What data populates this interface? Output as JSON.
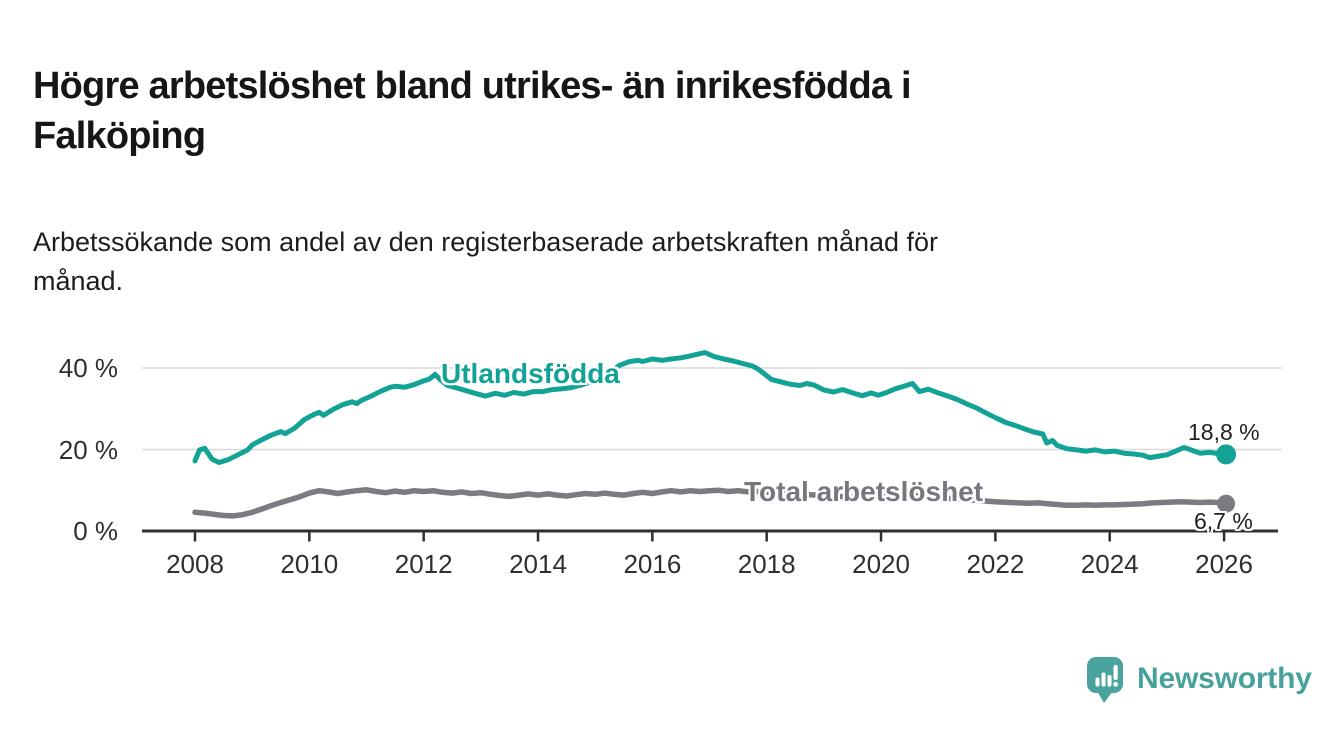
{
  "header": {
    "title_lines": [
      "Högre arbetslöshet bland utrikes- än inrikesfödda i",
      "Falköping"
    ],
    "subtitle_lines": [
      "Arbetssökande som andel av den registerbaserade arbetskraften månad för",
      "månad."
    ]
  },
  "chart_data": {
    "type": "line",
    "title": "Högre arbetslöshet bland utrikes- än inrikesfödda i Falköping",
    "subtitle": "Arbetssökande som andel av den registerbaserade arbetskraften månad för månad.",
    "unit": "%",
    "grid": "horizontal",
    "legend_position": "inline-labels",
    "x_axis": {
      "range": [
        2008,
        2027
      ],
      "ticks": [
        2008,
        2010,
        2012,
        2014,
        2016,
        2018,
        2020,
        2022,
        2024,
        2026
      ]
    },
    "y_axis": {
      "range": [
        0,
        44
      ],
      "gridlines": [
        20,
        40
      ],
      "ticks": [
        {
          "value": 0,
          "label": "0 %"
        },
        {
          "value": 20,
          "label": "20 %"
        },
        {
          "value": 40,
          "label": "40 %"
        }
      ]
    },
    "series": [
      {
        "name": "Utlandsfödda",
        "color": "#12a296",
        "end_label": "18,8 %",
        "end_value": 18.8,
        "points": [
          [
            2008.0,
            17.2
          ],
          [
            2008.08,
            19.9
          ],
          [
            2008.17,
            20.3
          ],
          [
            2008.3,
            17.6
          ],
          [
            2008.42,
            16.8
          ],
          [
            2008.58,
            17.5
          ],
          [
            2008.75,
            18.7
          ],
          [
            2008.92,
            19.9
          ],
          [
            2009.0,
            21.1
          ],
          [
            2009.17,
            22.4
          ],
          [
            2009.33,
            23.5
          ],
          [
            2009.5,
            24.4
          ],
          [
            2009.58,
            23.9
          ],
          [
            2009.75,
            25.3
          ],
          [
            2009.92,
            27.4
          ],
          [
            2010.08,
            28.6
          ],
          [
            2010.17,
            29.1
          ],
          [
            2010.25,
            28.4
          ],
          [
            2010.42,
            29.9
          ],
          [
            2010.58,
            31.0
          ],
          [
            2010.75,
            31.7
          ],
          [
            2010.83,
            31.3
          ],
          [
            2010.92,
            32.1
          ],
          [
            2011.08,
            33.1
          ],
          [
            2011.25,
            34.3
          ],
          [
            2011.42,
            35.3
          ],
          [
            2011.5,
            35.5
          ],
          [
            2011.67,
            35.3
          ],
          [
            2011.83,
            35.9
          ],
          [
            2011.95,
            36.6
          ],
          [
            2012.1,
            37.3
          ],
          [
            2012.2,
            38.4
          ],
          [
            2012.3,
            37.0
          ],
          [
            2012.42,
            35.7
          ],
          [
            2012.58,
            35.1
          ],
          [
            2012.75,
            34.4
          ],
          [
            2012.92,
            33.7
          ],
          [
            2013.08,
            33.1
          ],
          [
            2013.25,
            33.8
          ],
          [
            2013.42,
            33.3
          ],
          [
            2013.58,
            34.0
          ],
          [
            2013.75,
            33.6
          ],
          [
            2013.92,
            34.2
          ],
          [
            2014.08,
            34.2
          ],
          [
            2014.25,
            34.7
          ],
          [
            2014.42,
            34.9
          ],
          [
            2014.58,
            35.2
          ],
          [
            2014.75,
            35.8
          ],
          [
            2014.92,
            36.6
          ],
          [
            2015.08,
            37.6
          ],
          [
            2015.25,
            38.9
          ],
          [
            2015.42,
            40.6
          ],
          [
            2015.58,
            41.5
          ],
          [
            2015.75,
            41.9
          ],
          [
            2015.83,
            41.6
          ],
          [
            2016.0,
            42.2
          ],
          [
            2016.17,
            41.9
          ],
          [
            2016.33,
            42.2
          ],
          [
            2016.5,
            42.5
          ],
          [
            2016.67,
            43.0
          ],
          [
            2016.83,
            43.5
          ],
          [
            2016.92,
            43.8
          ],
          [
            2017.08,
            42.8
          ],
          [
            2017.25,
            42.2
          ],
          [
            2017.42,
            41.7
          ],
          [
            2017.58,
            41.1
          ],
          [
            2017.75,
            40.5
          ],
          [
            2017.83,
            39.9
          ],
          [
            2017.95,
            38.7
          ],
          [
            2018.08,
            37.2
          ],
          [
            2018.25,
            36.6
          ],
          [
            2018.42,
            36.0
          ],
          [
            2018.58,
            35.7
          ],
          [
            2018.7,
            36.2
          ],
          [
            2018.83,
            35.8
          ],
          [
            2019.0,
            34.6
          ],
          [
            2019.17,
            34.1
          ],
          [
            2019.33,
            34.7
          ],
          [
            2019.5,
            33.9
          ],
          [
            2019.67,
            33.2
          ],
          [
            2019.83,
            33.9
          ],
          [
            2019.95,
            33.3
          ],
          [
            2020.08,
            33.9
          ],
          [
            2020.25,
            34.9
          ],
          [
            2020.42,
            35.6
          ],
          [
            2020.55,
            36.2
          ],
          [
            2020.67,
            34.2
          ],
          [
            2020.83,
            34.8
          ],
          [
            2021.0,
            33.9
          ],
          [
            2021.17,
            33.1
          ],
          [
            2021.33,
            32.3
          ],
          [
            2021.5,
            31.2
          ],
          [
            2021.67,
            30.2
          ],
          [
            2021.83,
            29.0
          ],
          [
            2022.0,
            27.8
          ],
          [
            2022.17,
            26.7
          ],
          [
            2022.33,
            26.0
          ],
          [
            2022.5,
            25.1
          ],
          [
            2022.67,
            24.3
          ],
          [
            2022.83,
            23.8
          ],
          [
            2022.9,
            21.6
          ],
          [
            2023.0,
            22.2
          ],
          [
            2023.08,
            21.0
          ],
          [
            2023.25,
            20.2
          ],
          [
            2023.42,
            19.9
          ],
          [
            2023.58,
            19.6
          ],
          [
            2023.75,
            19.9
          ],
          [
            2023.92,
            19.4
          ],
          [
            2024.08,
            19.6
          ],
          [
            2024.25,
            19.1
          ],
          [
            2024.42,
            18.9
          ],
          [
            2024.58,
            18.6
          ],
          [
            2024.7,
            18.0
          ],
          [
            2024.83,
            18.3
          ],
          [
            2025.0,
            18.7
          ],
          [
            2025.17,
            19.7
          ],
          [
            2025.3,
            20.5
          ],
          [
            2025.42,
            19.9
          ],
          [
            2025.58,
            19.1
          ],
          [
            2025.75,
            19.3
          ],
          [
            2025.9,
            19.0
          ],
          [
            2026.0,
            18.8
          ]
        ]
      },
      {
        "name": "Total arbetslöshet",
        "color": "#7b7b82",
        "end_label": "6,7 %",
        "end_value": 6.7,
        "points": [
          [
            2008.0,
            4.6
          ],
          [
            2008.17,
            4.4
          ],
          [
            2008.33,
            4.1
          ],
          [
            2008.5,
            3.8
          ],
          [
            2008.67,
            3.7
          ],
          [
            2008.83,
            4.0
          ],
          [
            2009.0,
            4.6
          ],
          [
            2009.17,
            5.4
          ],
          [
            2009.33,
            6.2
          ],
          [
            2009.5,
            7.0
          ],
          [
            2009.67,
            7.7
          ],
          [
            2009.83,
            8.4
          ],
          [
            2010.0,
            9.3
          ],
          [
            2010.17,
            9.9
          ],
          [
            2010.33,
            9.6
          ],
          [
            2010.5,
            9.2
          ],
          [
            2010.67,
            9.6
          ],
          [
            2010.83,
            9.9
          ],
          [
            2011.0,
            10.1
          ],
          [
            2011.17,
            9.7
          ],
          [
            2011.33,
            9.4
          ],
          [
            2011.5,
            9.8
          ],
          [
            2011.67,
            9.5
          ],
          [
            2011.83,
            9.9
          ],
          [
            2012.0,
            9.7
          ],
          [
            2012.17,
            9.9
          ],
          [
            2012.33,
            9.5
          ],
          [
            2012.5,
            9.3
          ],
          [
            2012.67,
            9.6
          ],
          [
            2012.83,
            9.2
          ],
          [
            2013.0,
            9.4
          ],
          [
            2013.17,
            9.0
          ],
          [
            2013.33,
            8.7
          ],
          [
            2013.5,
            8.5
          ],
          [
            2013.67,
            8.8
          ],
          [
            2013.83,
            9.1
          ],
          [
            2014.0,
            8.8
          ],
          [
            2014.17,
            9.1
          ],
          [
            2014.33,
            8.8
          ],
          [
            2014.5,
            8.6
          ],
          [
            2014.67,
            8.9
          ],
          [
            2014.83,
            9.2
          ],
          [
            2015.0,
            9.0
          ],
          [
            2015.17,
            9.3
          ],
          [
            2015.33,
            9.0
          ],
          [
            2015.5,
            8.8
          ],
          [
            2015.67,
            9.2
          ],
          [
            2015.83,
            9.5
          ],
          [
            2016.0,
            9.2
          ],
          [
            2016.17,
            9.6
          ],
          [
            2016.33,
            9.9
          ],
          [
            2016.5,
            9.6
          ],
          [
            2016.67,
            9.9
          ],
          [
            2016.83,
            9.7
          ],
          [
            2017.0,
            9.9
          ],
          [
            2017.17,
            10.0
          ],
          [
            2017.33,
            9.7
          ],
          [
            2017.5,
            9.9
          ],
          [
            2017.67,
            9.6
          ],
          [
            2017.83,
            9.7
          ],
          [
            2018.0,
            9.5
          ],
          [
            2018.25,
            9.3
          ],
          [
            2018.5,
            9.1
          ],
          [
            2018.75,
            8.9
          ],
          [
            2019.0,
            8.7
          ],
          [
            2019.25,
            8.5
          ],
          [
            2019.5,
            8.3
          ],
          [
            2019.75,
            8.2
          ],
          [
            2020.0,
            8.4
          ],
          [
            2020.25,
            8.6
          ],
          [
            2020.5,
            8.8
          ],
          [
            2020.75,
            8.5
          ],
          [
            2021.0,
            8.2
          ],
          [
            2021.25,
            7.9
          ],
          [
            2021.5,
            7.7
          ],
          [
            2021.75,
            7.4
          ],
          [
            2022.0,
            7.2
          ],
          [
            2022.25,
            7.0
          ],
          [
            2022.42,
            6.9
          ],
          [
            2022.58,
            6.8
          ],
          [
            2022.75,
            6.9
          ],
          [
            2022.92,
            6.7
          ],
          [
            2023.08,
            6.5
          ],
          [
            2023.25,
            6.3
          ],
          [
            2023.42,
            6.3
          ],
          [
            2023.58,
            6.4
          ],
          [
            2023.75,
            6.3
          ],
          [
            2023.92,
            6.4
          ],
          [
            2024.08,
            6.4
          ],
          [
            2024.25,
            6.5
          ],
          [
            2024.42,
            6.6
          ],
          [
            2024.58,
            6.7
          ],
          [
            2024.75,
            6.9
          ],
          [
            2024.92,
            7.0
          ],
          [
            2025.08,
            7.1
          ],
          [
            2025.25,
            7.2
          ],
          [
            2025.42,
            7.1
          ],
          [
            2025.58,
            7.0
          ],
          [
            2025.75,
            7.1
          ],
          [
            2025.9,
            7.0
          ],
          [
            2026.0,
            6.7
          ]
        ]
      }
    ],
    "colors": {
      "accent_teal": "#12a296",
      "series_gray": "#7b7b82",
      "axis_text": "#2f2f2f",
      "axis_line": "#2f2f2f",
      "gridline": "#d9d9d9"
    }
  },
  "branding": {
    "logo_text": "Newsworthy",
    "logo_icon": "speech-bubble-bar-chart-icon",
    "color": "#48a29c"
  }
}
